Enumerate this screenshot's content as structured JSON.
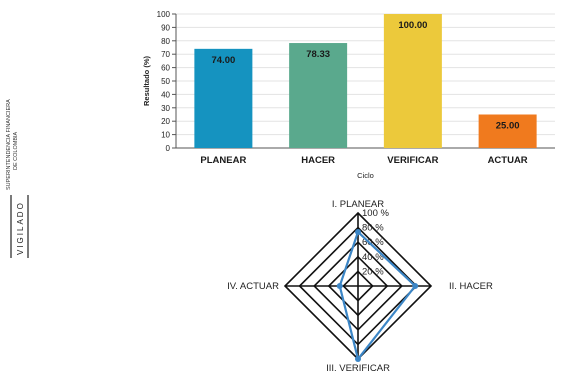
{
  "watermark": {
    "org_line1": "SUPERINTENDENCIA FINANCIERA",
    "org_line2": "DE COLOMBIA",
    "stamp": "VIGILADO"
  },
  "chart_data": [
    {
      "type": "bar",
      "categories": [
        "PLANEAR",
        "HACER",
        "VERIFICAR",
        "ACTUAR"
      ],
      "values": [
        74.0,
        78.33,
        100.0,
        25.0
      ],
      "value_labels": [
        "74.00",
        "78.33",
        "100.00",
        "25.00"
      ],
      "colors": [
        "#1593c0",
        "#5aa98d",
        "#ecc93b",
        "#f07a1e"
      ],
      "xlabel": "Ciclo",
      "ylabel": "Resultado (%)",
      "ylim": [
        0,
        100
      ],
      "yticks": [
        "0",
        "10",
        "20",
        "30",
        "40",
        "50",
        "60",
        "70",
        "80",
        "90",
        "100"
      ],
      "grid": true
    },
    {
      "type": "radar",
      "axes": [
        "I. PLANEAR",
        "II. HACER",
        "III. VERIFICAR",
        "IV. ACTUAR"
      ],
      "values": [
        74.0,
        78.33,
        100.0,
        25.0
      ],
      "rlim": [
        0,
        100
      ],
      "ring_labels": [
        "20 %",
        "40 %",
        "60 %",
        "80 %",
        "100 %"
      ],
      "series_color": "#3c86c6"
    }
  ]
}
